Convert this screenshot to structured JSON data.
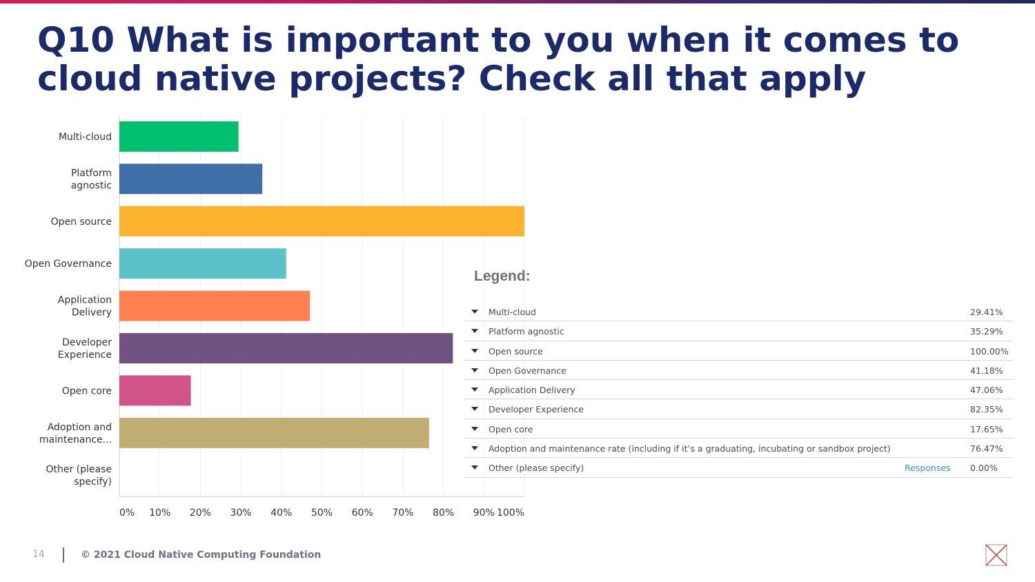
{
  "title": "Q10 What is important to you when it comes to cloud native projects? Check all that apply",
  "colors": {
    "title": "#1b2a6b",
    "bars": [
      "#00bf6f",
      "#3f6ea8",
      "#fbb32e",
      "#5bc2c9",
      "#ff7f4f",
      "#6f5182",
      "#d0538a",
      "#c1ad72",
      "#999999"
    ]
  },
  "chart_data": {
    "type": "bar",
    "orientation": "horizontal",
    "categories": [
      "Multi-cloud",
      "Platform agnostic",
      "Open source",
      "Open Governance",
      "Application Delivery",
      "Developer Experience",
      "Open core",
      "Adoption and maintenance...",
      "Other (please specify)"
    ],
    "category_lines": [
      [
        "Multi-cloud"
      ],
      [
        "Platform",
        "agnostic"
      ],
      [
        "Open source"
      ],
      [
        "Open Governance"
      ],
      [
        "Application",
        "Delivery"
      ],
      [
        "Developer",
        "Experience"
      ],
      [
        "Open core"
      ],
      [
        "Adoption and",
        "maintenance..."
      ],
      [
        "Other (please",
        "specify)"
      ]
    ],
    "values": [
      29.41,
      35.29,
      100.0,
      41.18,
      47.06,
      82.35,
      17.65,
      76.47,
      0.0
    ],
    "xlim": [
      0,
      100
    ],
    "xticks": [
      "0%",
      "10%",
      "20%",
      "30%",
      "40%",
      "50%",
      "60%",
      "70%",
      "80%",
      "90%",
      "100%"
    ],
    "grid": true
  },
  "legend": {
    "title": "Legend:",
    "rows": [
      {
        "label": "Multi-cloud",
        "value": "29.41%"
      },
      {
        "label": "Platform agnostic",
        "value": "35.29%"
      },
      {
        "label": "Open source",
        "value": "100.00%"
      },
      {
        "label": "Open Governance",
        "value": "41.18%"
      },
      {
        "label": "Application Delivery",
        "value": "47.06%"
      },
      {
        "label": "Developer Experience",
        "value": "82.35%"
      },
      {
        "label": "Open core",
        "value": "17.65%"
      },
      {
        "label": "Adoption and maintenance rate (including if it’s a graduating, incubating or sandbox project)",
        "value": "76.47%"
      },
      {
        "label": "Other (please specify)",
        "value": "0.00%",
        "link": "Responses"
      }
    ]
  },
  "footer": {
    "page_number": "14",
    "copyright": "© 2021 Cloud Native Computing Foundation"
  }
}
